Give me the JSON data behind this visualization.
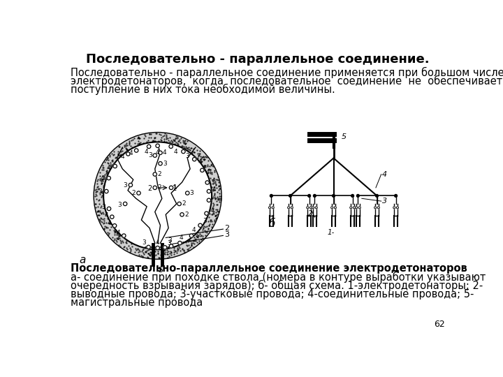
{
  "title": "Последовательно - параллельное соединение.",
  "intro_text": "Последовательно - параллельное соединение применяется при большом числе\nэлектродетонаторов,  когда  последовательное  соединение  не  обеспечивает\nпоступление в них тока необходимой величины.",
  "caption_bold": "Последовательно-параллельное соединение электродетонаторов",
  "caption_body": "а- соединение при походке ствола (номера в контуре выработки указывают\nочередность взрывания зарядов); б- общая схема. 1-электродетонаторы; 2-\nвыводные провода; 3-участковые провода; 4-соединительные провода; 5-\nмагистральные провода",
  "page_number": "62",
  "label_a": "а",
  "label_b": "б",
  "bg_color": "#ffffff",
  "text_color": "#000000",
  "title_fontsize": 13,
  "body_fontsize": 10.5,
  "caption_fontsize": 10.5
}
